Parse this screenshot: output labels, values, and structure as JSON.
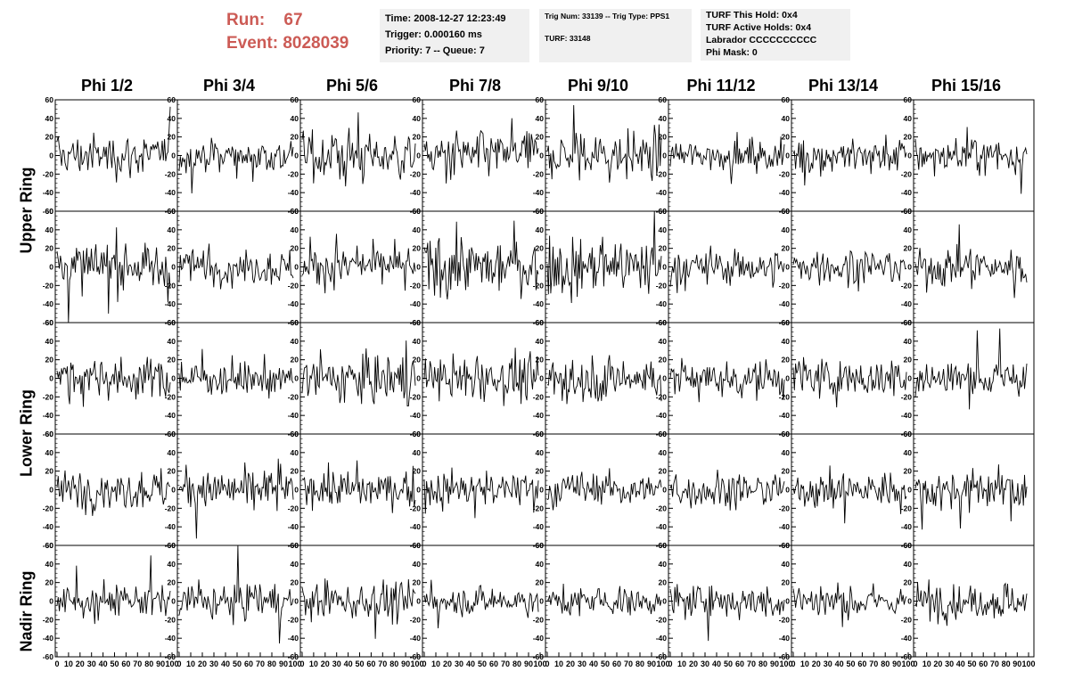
{
  "header": {
    "run_label": "Run:",
    "run_value": "67",
    "event_label": "Event:",
    "event_value": "8028039"
  },
  "info_boxes": {
    "time": "Time: 2008-12-27 12:23:49",
    "trigger": "Trigger: 0.000160 ms",
    "priority": "Priority: 7 -- Queue: 7",
    "trig_num": "Trig Num: 33139 -- Trig Type: PPS1",
    "turf": "TURF: 33148",
    "turf_this_hold": "TURF This Hold: 0x4",
    "turf_active_holds": "TURF Active Holds: 0x4",
    "labrador": "Labrador CCCCCCCCCC",
    "phi_mask": "Phi Mask: 0"
  },
  "columns": [
    "Phi 1/2",
    "Phi 3/4",
    "Phi 5/6",
    "Phi 7/8",
    "Phi 9/10",
    "Phi 11/12",
    "Phi 13/14",
    "Phi 15/16"
  ],
  "row_groups": [
    {
      "label": "Upper Ring"
    },
    {
      "label": "Lower Ring"
    },
    {
      "label": "Nadir Ring"
    }
  ],
  "colors": {
    "header_text": "#cc5b55",
    "info_box_bg": "#f0f0f0",
    "trace": "#000000"
  },
  "chart_data": {
    "type": "line",
    "description_grid": "5 rows x 8 columns of waveform panels",
    "ylim": [
      -60,
      60
    ],
    "xlim": [
      0,
      100
    ],
    "ytick_labels": [
      "60",
      "40",
      "20",
      "0",
      "-20",
      "-40",
      "-60"
    ],
    "xtick_labels": [
      "0",
      "10",
      "20",
      "30",
      "40",
      "50",
      "60",
      "70",
      "80",
      "90",
      "100"
    ],
    "traces_per_panel_points": 100,
    "panel_amplitude": [
      [
        14,
        12,
        17,
        15,
        17,
        9,
        13,
        12
      ],
      [
        16,
        12,
        13,
        19,
        20,
        12,
        12,
        12
      ],
      [
        13,
        12,
        17,
        14,
        16,
        13,
        14,
        13
      ],
      [
        13,
        13,
        12,
        13,
        12,
        12,
        12,
        14
      ],
      [
        11,
        12,
        12,
        9,
        10,
        11,
        11,
        12
      ]
    ],
    "grid": false
  }
}
